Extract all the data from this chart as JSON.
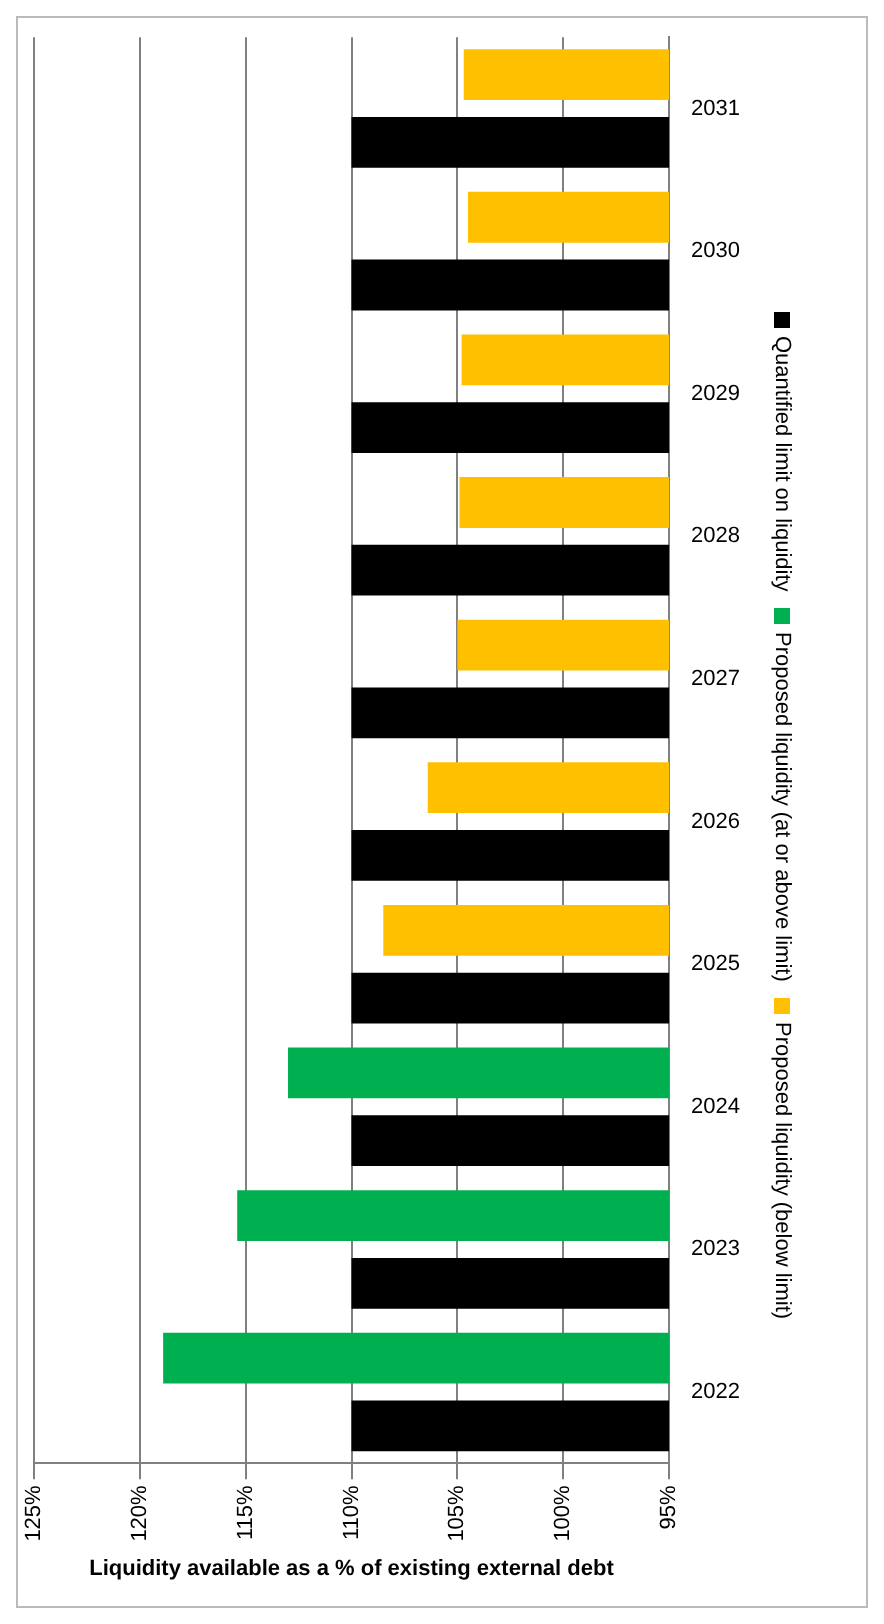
{
  "chart_data": {
    "type": "bar",
    "orientation": "horizontal",
    "xlabel": "Liquidity available as a % of existing external debt",
    "categories": [
      "2031",
      "2030",
      "2029",
      "2028",
      "2027",
      "2026",
      "2025",
      "2024",
      "2023",
      "2022"
    ],
    "series": [
      {
        "name": "Quantified limit on liquidity",
        "color": "#000000",
        "values": [
          110,
          110,
          110,
          110,
          110,
          110,
          110,
          110,
          110,
          110
        ]
      },
      {
        "name": "Proposed liquidity (at or above limit)",
        "color": "#00b050",
        "values": [
          null,
          null,
          null,
          null,
          null,
          null,
          null,
          113,
          115.4,
          118.9
        ]
      },
      {
        "name": "Proposed liquidity (below limit)",
        "color": "#ffc000",
        "values": [
          104.7,
          104.5,
          104.8,
          104.9,
          105,
          106.4,
          108.5,
          null,
          null,
          null
        ]
      }
    ],
    "xlim": [
      125,
      95
    ],
    "xticks": [
      {
        "value": 125,
        "label": "125%"
      },
      {
        "value": 120,
        "label": "120%"
      },
      {
        "value": 115,
        "label": "115%"
      },
      {
        "value": 110,
        "label": "110%"
      },
      {
        "value": 105,
        "label": "105%"
      },
      {
        "value": 100,
        "label": "100%"
      },
      {
        "value": 95,
        "label": "95%"
      }
    ],
    "grid": "x",
    "legend": "right"
  }
}
